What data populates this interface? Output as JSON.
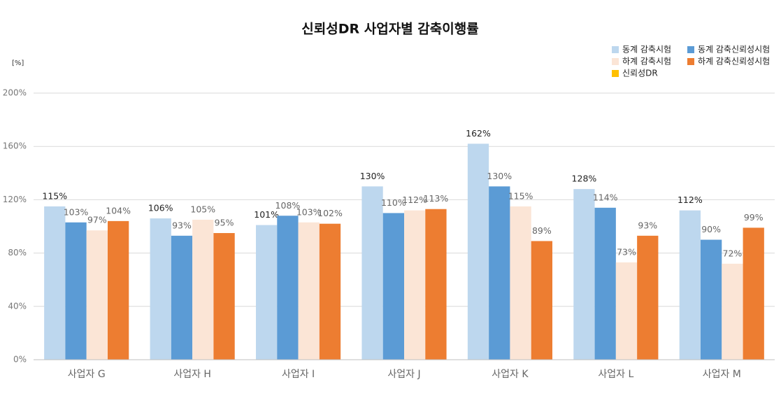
{
  "chart_data": {
    "type": "bar",
    "title": "신뢰성DR 사업자별 감축이행률",
    "y_unit": "[%]",
    "categories": [
      "사업자 G",
      "사업자 H",
      "사업자 I",
      "사업자 J",
      "사업자 K",
      "사업자 L",
      "사업자 M"
    ],
    "series": [
      {
        "name": "동계 감축시험",
        "color": "#bdd7ee",
        "label_color": "#222222",
        "values": [
          115,
          106,
          101,
          130,
          162,
          128,
          112
        ],
        "value_labels": [
          "115%",
          "106%",
          "101%",
          "130%",
          "162%",
          "128%",
          "112%"
        ]
      },
      {
        "name": "동계 감축신뢰성시험",
        "color": "#5b9bd5",
        "label_color": "#666666",
        "values": [
          103,
          93,
          108,
          110,
          130,
          114,
          90
        ],
        "value_labels": [
          "103%",
          "93%",
          "108%",
          "110%",
          "130%",
          "114%",
          "90%"
        ]
      },
      {
        "name": "하계 감축시험",
        "color": "#fbe5d6",
        "label_color": "#666666",
        "values": [
          97,
          105,
          103,
          112,
          115,
          73,
          72
        ],
        "value_labels": [
          "97%",
          "105%",
          "103%",
          "112%",
          "115%",
          "73%",
          "72%"
        ]
      },
      {
        "name": "하계 감축신뢰성시험",
        "color": "#ed7d31",
        "label_color": "#666666",
        "values": [
          104,
          95,
          102,
          113,
          89,
          93,
          99
        ],
        "value_labels": [
          "104%",
          "95%",
          "102%",
          "113%",
          "89%",
          "93%",
          "99%"
        ]
      },
      {
        "name": "신뢰성DR",
        "color": "#ffc000",
        "values": [
          null,
          null,
          null,
          null,
          null,
          null,
          null
        ]
      }
    ],
    "ylim": [
      0,
      200
    ],
    "yticks": [
      {
        "value": 0,
        "label": "0%"
      },
      {
        "value": 40,
        "label": "40%"
      },
      {
        "value": 80,
        "label": "80%"
      },
      {
        "value": 120,
        "label": "120%"
      },
      {
        "value": 160,
        "label": "160%"
      },
      {
        "value": 200,
        "label": "200%"
      }
    ],
    "grid": true,
    "legend": "top-right"
  }
}
